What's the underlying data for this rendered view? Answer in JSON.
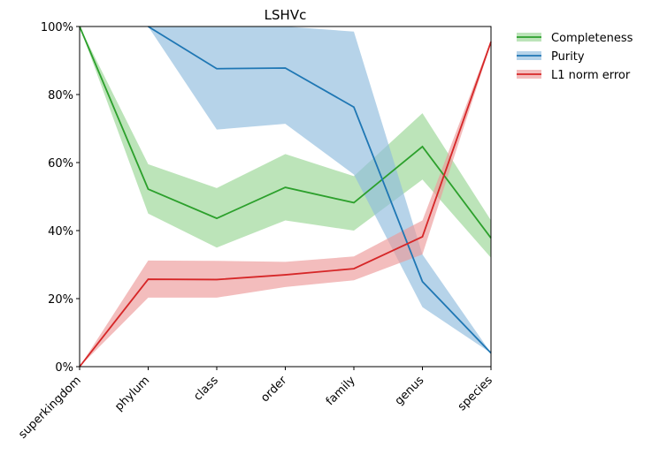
{
  "chart_data": {
    "type": "line",
    "title": "LSHVc",
    "xlabel": "",
    "ylabel": "",
    "categories": [
      "superkingdom",
      "phylum",
      "class",
      "order",
      "family",
      "genus",
      "species"
    ],
    "ylim": [
      0,
      1
    ],
    "yticks": [
      0,
      0.2,
      0.4,
      0.6,
      0.8,
      1.0
    ],
    "ytick_labels": [
      "0%",
      "20%",
      "40%",
      "60%",
      "80%",
      "100%"
    ],
    "legend_position": "outside-top-right",
    "grid": false,
    "series": [
      {
        "name": "Completeness",
        "color": "#2ca02c",
        "band_color": "#98d594",
        "values": [
          1.0,
          0.522,
          0.436,
          0.527,
          0.482,
          0.647,
          0.378
        ],
        "lower": [
          1.0,
          0.45,
          0.35,
          0.43,
          0.4,
          0.55,
          0.32
        ],
        "upper": [
          1.0,
          0.595,
          0.525,
          0.625,
          0.56,
          0.745,
          0.43
        ]
      },
      {
        "name": "Purity",
        "color": "#1f77b4",
        "band_color": "#8fbcdd",
        "values": [
          null,
          1.0,
          0.876,
          0.878,
          0.763,
          0.25,
          0.04
        ],
        "lower": [
          null,
          1.0,
          0.697,
          0.714,
          0.565,
          0.175,
          0.04
        ],
        "upper": [
          null,
          1.0,
          1.0,
          1.0,
          0.985,
          0.33,
          0.04
        ]
      },
      {
        "name": "L1 norm error",
        "color": "#d62728",
        "band_color": "#ec9a9a",
        "values": [
          0.0,
          0.257,
          0.256,
          0.27,
          0.288,
          0.382,
          0.955
        ],
        "lower": [
          0.0,
          0.203,
          0.203,
          0.234,
          0.254,
          0.33,
          0.95
        ],
        "upper": [
          0.0,
          0.312,
          0.311,
          0.308,
          0.324,
          0.43,
          0.96
        ]
      }
    ]
  }
}
